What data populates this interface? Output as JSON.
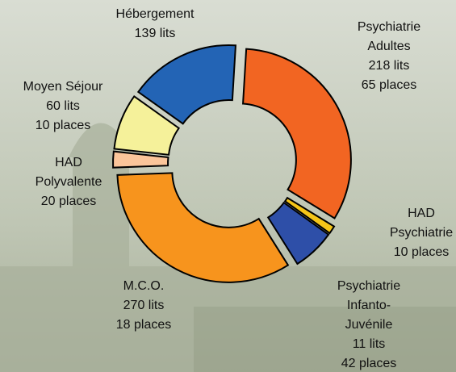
{
  "chart_data": {
    "type": "pie",
    "donut": true,
    "labels": [
      [
        "Psychiatrie",
        "Adultes",
        "218 lits",
        "65 places"
      ],
      [
        "HAD",
        "Psychiatrie",
        "10 places"
      ],
      [
        "Psychiatrie",
        "Infanto-",
        "Juvénile",
        "11 lits",
        "42 places"
      ],
      [
        "M.C.O.",
        "270 lits",
        "18 places"
      ],
      [
        "HAD",
        "Polyvalente",
        "20 places"
      ],
      [
        "Moyen Séjour",
        "60 lits",
        "10 places"
      ],
      [
        "Hébergement",
        "139 lits"
      ]
    ],
    "values": [
      283,
      10,
      53,
      288,
      20,
      70,
      139
    ],
    "colors": [
      "#f26522",
      "#f5c518",
      "#2e4fa8",
      "#f7941d",
      "#fbc59a",
      "#f5f19a",
      "#2364b5"
    ]
  }
}
